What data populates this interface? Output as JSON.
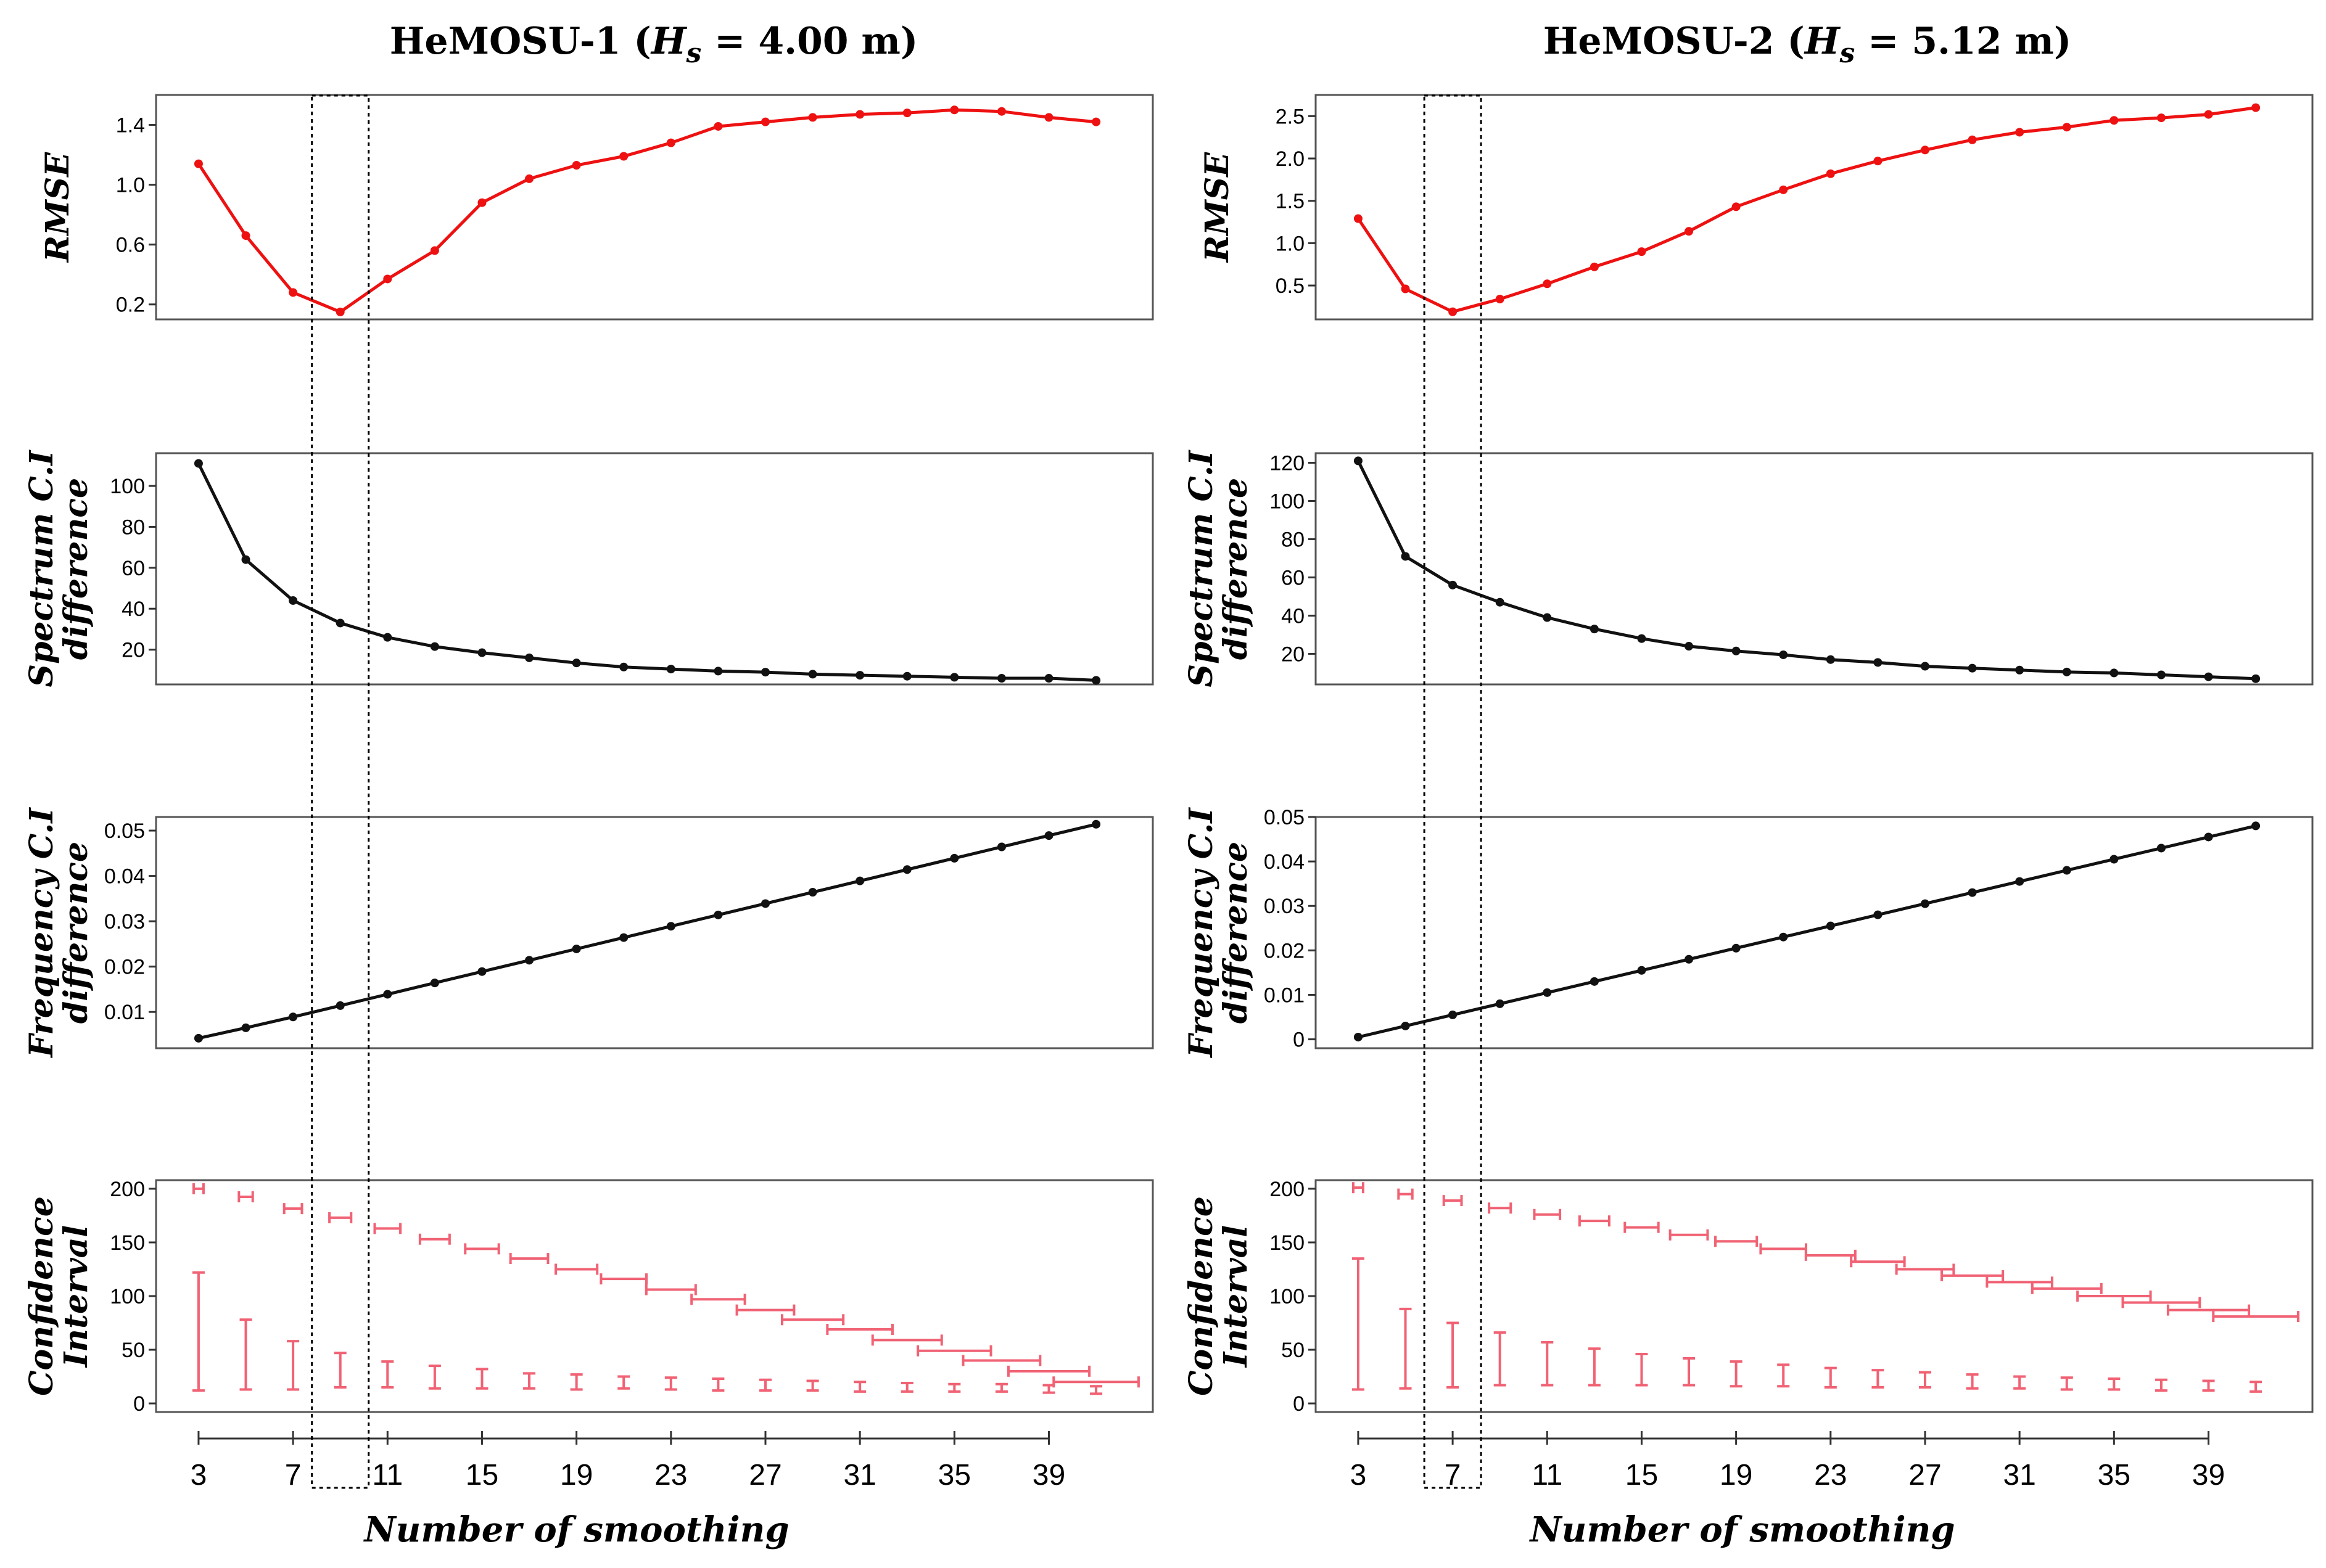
{
  "colors": {
    "red": "#ee1111",
    "black": "#111111",
    "pink": "#f06274"
  },
  "chart_data": [
    {
      "type": "line",
      "panel": "HeMOSU-1",
      "title": "HeMOSU-1 (",
      "title_var": "H",
      "title_sub": "s",
      "title_rest": " = 4.00 m)",
      "xlabel": "Number of smoothing",
      "x": [
        3,
        5,
        7,
        9,
        11,
        13,
        15,
        17,
        19,
        21,
        23,
        25,
        27,
        29,
        31,
        33,
        35,
        37,
        39,
        41
      ],
      "xticks": [
        3,
        7,
        11,
        15,
        19,
        23,
        27,
        31,
        35,
        39
      ],
      "xlim": [
        1.2,
        43.4
      ],
      "highlight_x": 9,
      "subplots": [
        {
          "name": "rmse",
          "ylabel": [
            "RMSE"
          ],
          "color": "red",
          "ylim": [
            0.1,
            1.6
          ],
          "yticks": [
            {
              "v": 0.2,
              "t": "0.2"
            },
            {
              "v": 0.6,
              "t": "0.6"
            },
            {
              "v": 1.0,
              "t": "1.0"
            },
            {
              "v": 1.4,
              "t": "1.4"
            }
          ],
          "values": [
            1.14,
            0.66,
            0.28,
            0.15,
            0.37,
            0.56,
            0.88,
            1.04,
            1.13,
            1.19,
            1.28,
            1.39,
            1.42,
            1.45,
            1.47,
            1.48,
            1.5,
            1.49,
            1.45,
            1.42
          ]
        },
        {
          "name": "spectrum-ci",
          "ylabel": [
            "Spectrum C.I",
            "difference"
          ],
          "color": "black",
          "ylim": [
            3,
            116
          ],
          "yticks": [
            {
              "v": 20,
              "t": "20"
            },
            {
              "v": 40,
              "t": "40"
            },
            {
              "v": 60,
              "t": "60"
            },
            {
              "v": 80,
              "t": "80"
            },
            {
              "v": 100,
              "t": "100"
            }
          ],
          "values": [
            111,
            64,
            44,
            33,
            26,
            21.5,
            18.5,
            16,
            13.5,
            11.5,
            10.5,
            9.5,
            9,
            8,
            7.5,
            7,
            6.5,
            6,
            6,
            5
          ]
        },
        {
          "name": "frequency-ci",
          "ylabel": [
            "Frequency C.I",
            "difference"
          ],
          "color": "black",
          "ylim": [
            0.002,
            0.053
          ],
          "yticks": [
            {
              "v": 0.01,
              "t": "0.01"
            },
            {
              "v": 0.02,
              "t": "0.02"
            },
            {
              "v": 0.03,
              "t": "0.03"
            },
            {
              "v": 0.04,
              "t": "0.04"
            },
            {
              "v": 0.05,
              "t": "0.05"
            }
          ],
          "values": [
            0.0042,
            0.0065,
            0.0089,
            0.0114,
            0.0139,
            0.0164,
            0.0189,
            0.0214,
            0.0239,
            0.0264,
            0.0289,
            0.0314,
            0.0339,
            0.0364,
            0.0389,
            0.0414,
            0.0439,
            0.0464,
            0.0489,
            0.0514
          ]
        },
        {
          "name": "confidence-interval",
          "ylabel": [
            "Confidence",
            "Interval"
          ],
          "color": "pink",
          "type": "errorbar",
          "ylim": [
            -8,
            208
          ],
          "yticks": [
            {
              "v": 0,
              "t": "0"
            },
            {
              "v": 50,
              "t": "50"
            },
            {
              "v": 100,
              "t": "100"
            },
            {
              "v": 150,
              "t": "150"
            },
            {
              "v": 200,
              "t": "200"
            }
          ],
          "upper": [
            [
              197,
              203
            ],
            [
              190,
              195
            ],
            [
              178,
              185
            ],
            [
              170,
              176
            ],
            [
              160,
              166
            ],
            [
              150,
              156
            ],
            [
              141,
              147
            ],
            [
              132,
              138
            ],
            [
              122,
              128
            ],
            [
              113,
              119
            ],
            [
              103,
              109
            ],
            [
              94,
              100
            ],
            [
              84,
              90
            ],
            [
              75,
              81
            ],
            [
              66,
              72
            ],
            [
              56,
              62
            ],
            [
              46,
              52
            ],
            [
              37,
              43
            ],
            [
              27,
              33
            ],
            [
              16,
              24
            ]
          ],
          "lower": [
            [
              12,
              122
            ],
            [
              13,
              78
            ],
            [
              13,
              58
            ],
            [
              15,
              47
            ],
            [
              15,
              39
            ],
            [
              14,
              35
            ],
            [
              14,
              32
            ],
            [
              14,
              28
            ],
            [
              13,
              27
            ],
            [
              14,
              25
            ],
            [
              13,
              24
            ],
            [
              12,
              23
            ],
            [
              12,
              22
            ],
            [
              12,
              21
            ],
            [
              11,
              20
            ],
            [
              11,
              19
            ],
            [
              11,
              18
            ],
            [
              11,
              18
            ],
            [
              10,
              17
            ],
            [
              9,
              16
            ]
          ]
        }
      ]
    },
    {
      "type": "line",
      "panel": "HeMOSU-2",
      "title": "HeMOSU-2 (",
      "title_var": "H",
      "title_sub": "s",
      "title_rest": " = 5.12 m)",
      "xlabel": "Number of smoothing",
      "x": [
        3,
        5,
        7,
        9,
        11,
        13,
        15,
        17,
        19,
        21,
        23,
        25,
        27,
        29,
        31,
        33,
        35,
        37,
        39,
        41
      ],
      "xticks": [
        3,
        7,
        11,
        15,
        19,
        23,
        27,
        31,
        35,
        39
      ],
      "xlim": [
        1.2,
        43.4
      ],
      "highlight_x": 7,
      "subplots": [
        {
          "name": "rmse",
          "ylabel": [
            "RMSE"
          ],
          "color": "red",
          "ylim": [
            0.1,
            2.75
          ],
          "yticks": [
            {
              "v": 0.5,
              "t": "0.5"
            },
            {
              "v": 1.0,
              "t": "1.0"
            },
            {
              "v": 1.5,
              "t": "1.5"
            },
            {
              "v": 2.0,
              "t": "2.0"
            },
            {
              "v": 2.5,
              "t": "2.5"
            }
          ],
          "values": [
            1.29,
            0.46,
            0.19,
            0.34,
            0.52,
            0.72,
            0.9,
            1.14,
            1.43,
            1.63,
            1.82,
            1.97,
            2.1,
            2.22,
            2.31,
            2.37,
            2.45,
            2.48,
            2.52,
            2.6
          ]
        },
        {
          "name": "spectrum-ci",
          "ylabel": [
            "Spectrum C.I",
            "difference"
          ],
          "color": "black",
          "ylim": [
            4,
            125
          ],
          "yticks": [
            {
              "v": 20,
              "t": "20"
            },
            {
              "v": 40,
              "t": "40"
            },
            {
              "v": 60,
              "t": "60"
            },
            {
              "v": 80,
              "t": "80"
            },
            {
              "v": 100,
              "t": "100"
            },
            {
              "v": 120,
              "t": "120"
            }
          ],
          "values": [
            121,
            71,
            56,
            47,
            39,
            33,
            28,
            24,
            21.5,
            19.5,
            17,
            15.5,
            13.5,
            12.5,
            11.5,
            10.5,
            10,
            9,
            8,
            7
          ]
        },
        {
          "name": "frequency-ci",
          "ylabel": [
            "Frequency C.I",
            "difference"
          ],
          "color": "black",
          "ylim": [
            -0.002,
            0.05
          ],
          "yticks": [
            {
              "v": 0,
              "t": "0"
            },
            {
              "v": 0.01,
              "t": "0.01"
            },
            {
              "v": 0.02,
              "t": "0.02"
            },
            {
              "v": 0.03,
              "t": "0.03"
            },
            {
              "v": 0.04,
              "t": "0.04"
            },
            {
              "v": 0.05,
              "t": "0.05"
            }
          ],
          "values": [
            0.0005,
            0.003,
            0.0055,
            0.008,
            0.0105,
            0.013,
            0.0155,
            0.018,
            0.0205,
            0.023,
            0.0255,
            0.028,
            0.0305,
            0.033,
            0.0355,
            0.038,
            0.0405,
            0.043,
            0.0455,
            0.048
          ]
        },
        {
          "name": "confidence-interval",
          "ylabel": [
            "Confidence",
            "Interval"
          ],
          "color": "pink",
          "type": "errorbar",
          "ylim": [
            -8,
            208
          ],
          "yticks": [
            {
              "v": 0,
              "t": "0"
            },
            {
              "v": 50,
              "t": "50"
            },
            {
              "v": 100,
              "t": "100"
            },
            {
              "v": 150,
              "t": "150"
            },
            {
              "v": 200,
              "t": "200"
            }
          ],
          "upper": [
            [
              198,
              204
            ],
            [
              192,
              198
            ],
            [
              186,
              192
            ],
            [
              179,
              185
            ],
            [
              173,
              179
            ],
            [
              167,
              173
            ],
            [
              161,
              167
            ],
            [
              154,
              160
            ],
            [
              148,
              154
            ],
            [
              141,
              147
            ],
            [
              135,
              141
            ],
            [
              129,
              135
            ],
            [
              122,
              128
            ],
            [
              116,
              122
            ],
            [
              110,
              116
            ],
            [
              104,
              110
            ],
            [
              97,
              103
            ],
            [
              91,
              97
            ],
            [
              84,
              90
            ],
            [
              78,
              84
            ]
          ],
          "lower": [
            [
              13,
              135
            ],
            [
              14,
              88
            ],
            [
              15,
              75
            ],
            [
              17,
              66
            ],
            [
              17,
              57
            ],
            [
              17,
              51
            ],
            [
              17,
              46
            ],
            [
              17,
              42
            ],
            [
              16,
              39
            ],
            [
              16,
              36
            ],
            [
              15,
              33
            ],
            [
              15,
              31
            ],
            [
              15,
              29
            ],
            [
              14,
              27
            ],
            [
              14,
              25
            ],
            [
              13,
              24
            ],
            [
              13,
              23
            ],
            [
              12,
              22
            ],
            [
              12,
              21
            ],
            [
              11,
              20
            ]
          ]
        }
      ]
    }
  ]
}
